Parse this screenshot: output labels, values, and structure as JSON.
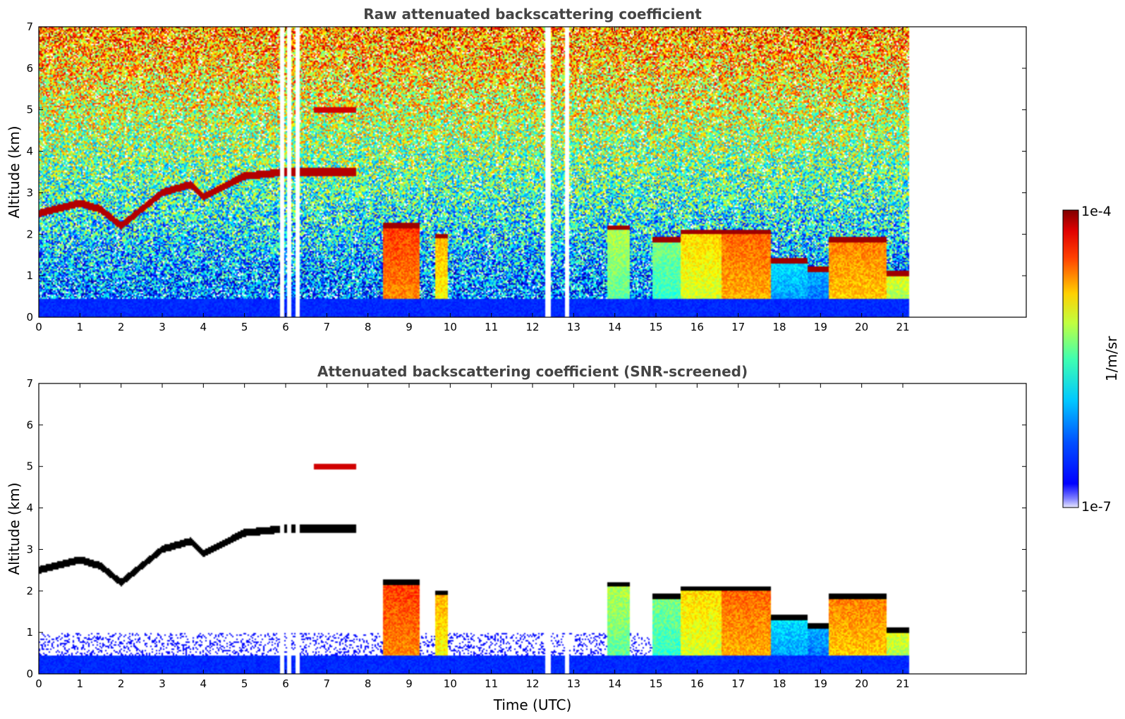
{
  "chart_data": [
    {
      "type": "heatmap",
      "title": "Raw attenuated backscattering coefficient",
      "xlabel": "",
      "ylabel": "Altitude (km)",
      "xlim": [
        0,
        24
      ],
      "ylim": [
        0,
        7
      ],
      "xticks": [
        "0",
        "1",
        "2",
        "3",
        "4",
        "5",
        "6",
        "7",
        "8",
        "9",
        "10",
        "11",
        "12",
        "13",
        "14",
        "15",
        "16",
        "17",
        "18",
        "19",
        "20",
        "21"
      ],
      "yticks": [
        "0",
        "1",
        "2",
        "3",
        "4",
        "5",
        "6",
        "7"
      ],
      "data_extent_hours": [
        0,
        21.15
      ],
      "missing_data_gaps_hours": [
        [
          5.85,
          5.95
        ],
        [
          6.05,
          6.15
        ],
        [
          6.25,
          6.35
        ],
        [
          12.3,
          12.45
        ],
        [
          12.8,
          12.9
        ]
      ],
      "features": [
        {
          "name": "boundary layer",
          "x_range": [
            0,
            21.15
          ],
          "top_km": 0.45
        },
        {
          "name": "elevated layer",
          "x": [
            0,
            1,
            1.5,
            2,
            3,
            3.7,
            4,
            5,
            6,
            7,
            7.5
          ],
          "altitude_km": [
            2.5,
            2.75,
            2.6,
            2.2,
            3.0,
            3.2,
            2.9,
            3.4,
            3.5,
            3.5,
            3.5
          ]
        },
        {
          "name": "aerosol layer",
          "x_range": [
            6.7,
            7.7
          ],
          "altitude_km": 5.0
        },
        {
          "name": "low cloud",
          "x_range": [
            8.3,
            9.3
          ],
          "top_km": 2.2
        },
        {
          "name": "low cloud",
          "x_range": [
            13.8,
            18.0
          ],
          "top_km": 2.0
        },
        {
          "name": "low cloud",
          "x_range": [
            19.2,
            21.15
          ],
          "top_km": 1.8
        }
      ],
      "grid": false
    },
    {
      "type": "heatmap",
      "title": "Attenuated backscattering coefficient (SNR-screened)",
      "xlabel": "Time (UTC)",
      "ylabel": "Altitude (km)",
      "xlim": [
        0,
        24
      ],
      "ylim": [
        0,
        7
      ],
      "xticks": [
        "0",
        "1",
        "2",
        "3",
        "4",
        "5",
        "6",
        "7",
        "8",
        "9",
        "10",
        "11",
        "12",
        "13",
        "14",
        "15",
        "16",
        "17",
        "18",
        "19",
        "20",
        "21"
      ],
      "yticks": [
        "0",
        "1",
        "2",
        "3",
        "4",
        "5",
        "6",
        "7"
      ],
      "data_extent_hours": [
        0,
        21.15
      ],
      "grid": false
    }
  ],
  "colorbar": {
    "label": "1/m/sr",
    "max_label": "1e-4",
    "min_label": "1e-7",
    "scale": "log",
    "range": [
      1e-07,
      0.0001
    ],
    "colormap": "jet"
  },
  "colors": {
    "jet": [
      "#00007f",
      "#0000ff",
      "#007fff",
      "#00ffff",
      "#7fff7f",
      "#ffff00",
      "#ff7f00",
      "#ff0000",
      "#7f0000"
    ],
    "missing": "#ffffff",
    "title_text": "#444444"
  }
}
